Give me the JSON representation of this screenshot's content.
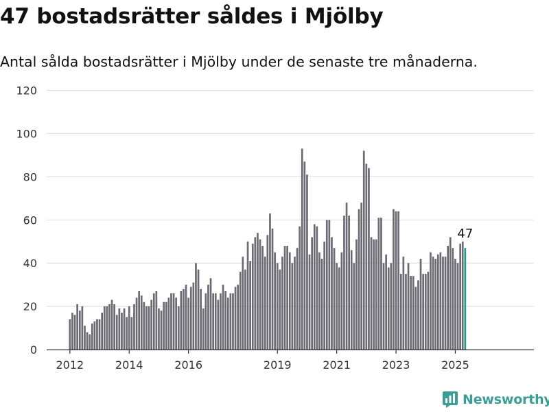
{
  "header": {
    "title": "47 bostadsrätter såldes i Mjölby",
    "subtitle": "Antal sålda bostadsrätter i Mjölby under de senaste tre månaderna."
  },
  "brand": {
    "name": "Newsworthy",
    "icon": "newsworthy-logo-icon",
    "color": "#3a9e95"
  },
  "colors": {
    "bar": "#6b6b73",
    "highlight": "#24998e",
    "grid": "#dddddd",
    "axis": "#333333"
  },
  "chart_data": {
    "type": "bar",
    "title": "47 bostadsrätter såldes i Mjölby",
    "subtitle": "Antal sålda bostadsrätter i Mjölby under de senaste tre månaderna.",
    "x_unit": "month",
    "first_period": "2012-01",
    "last_period": "2025-04",
    "ylim": [
      0,
      120
    ],
    "yticks": [
      0,
      20,
      40,
      60,
      80,
      100,
      120
    ],
    "xtick_labels": [
      "2012",
      "2014",
      "2016",
      "2019",
      "2021",
      "2023",
      "2025"
    ],
    "grid": true,
    "highlight_last": true,
    "highlight_label": "47",
    "values": [
      14,
      17,
      16,
      21,
      18,
      20,
      11,
      8,
      7,
      12,
      13,
      14,
      14,
      17,
      20,
      20,
      21,
      23,
      21,
      16,
      19,
      17,
      19,
      15,
      20,
      15,
      21,
      24,
      27,
      25,
      22,
      20,
      20,
      23,
      26,
      27,
      19,
      18,
      22,
      22,
      24,
      26,
      26,
      24,
      20,
      27,
      28,
      30,
      24,
      29,
      31,
      40,
      37,
      28,
      19,
      26,
      30,
      33,
      26,
      26,
      23,
      26,
      30,
      27,
      24,
      26,
      26,
      29,
      30,
      36,
      43,
      37,
      50,
      41,
      49,
      52,
      54,
      51,
      48,
      43,
      53,
      63,
      56,
      45,
      40,
      37,
      43,
      48,
      48,
      45,
      40,
      43,
      47,
      57,
      93,
      87,
      81,
      44,
      52,
      58,
      57,
      45,
      42,
      50,
      60,
      60,
      52,
      47,
      40,
      38,
      45,
      62,
      68,
      62,
      46,
      40,
      51,
      65,
      68,
      92,
      86,
      84,
      52,
      51,
      51,
      61,
      61,
      40,
      44,
      38,
      40,
      65,
      64,
      64,
      35,
      43,
      35,
      40,
      34,
      34,
      29,
      32,
      42,
      35,
      35,
      36,
      45,
      43,
      42,
      44,
      45,
      43,
      43,
      48,
      52,
      47,
      42,
      40,
      49,
      50,
      47
    ]
  }
}
